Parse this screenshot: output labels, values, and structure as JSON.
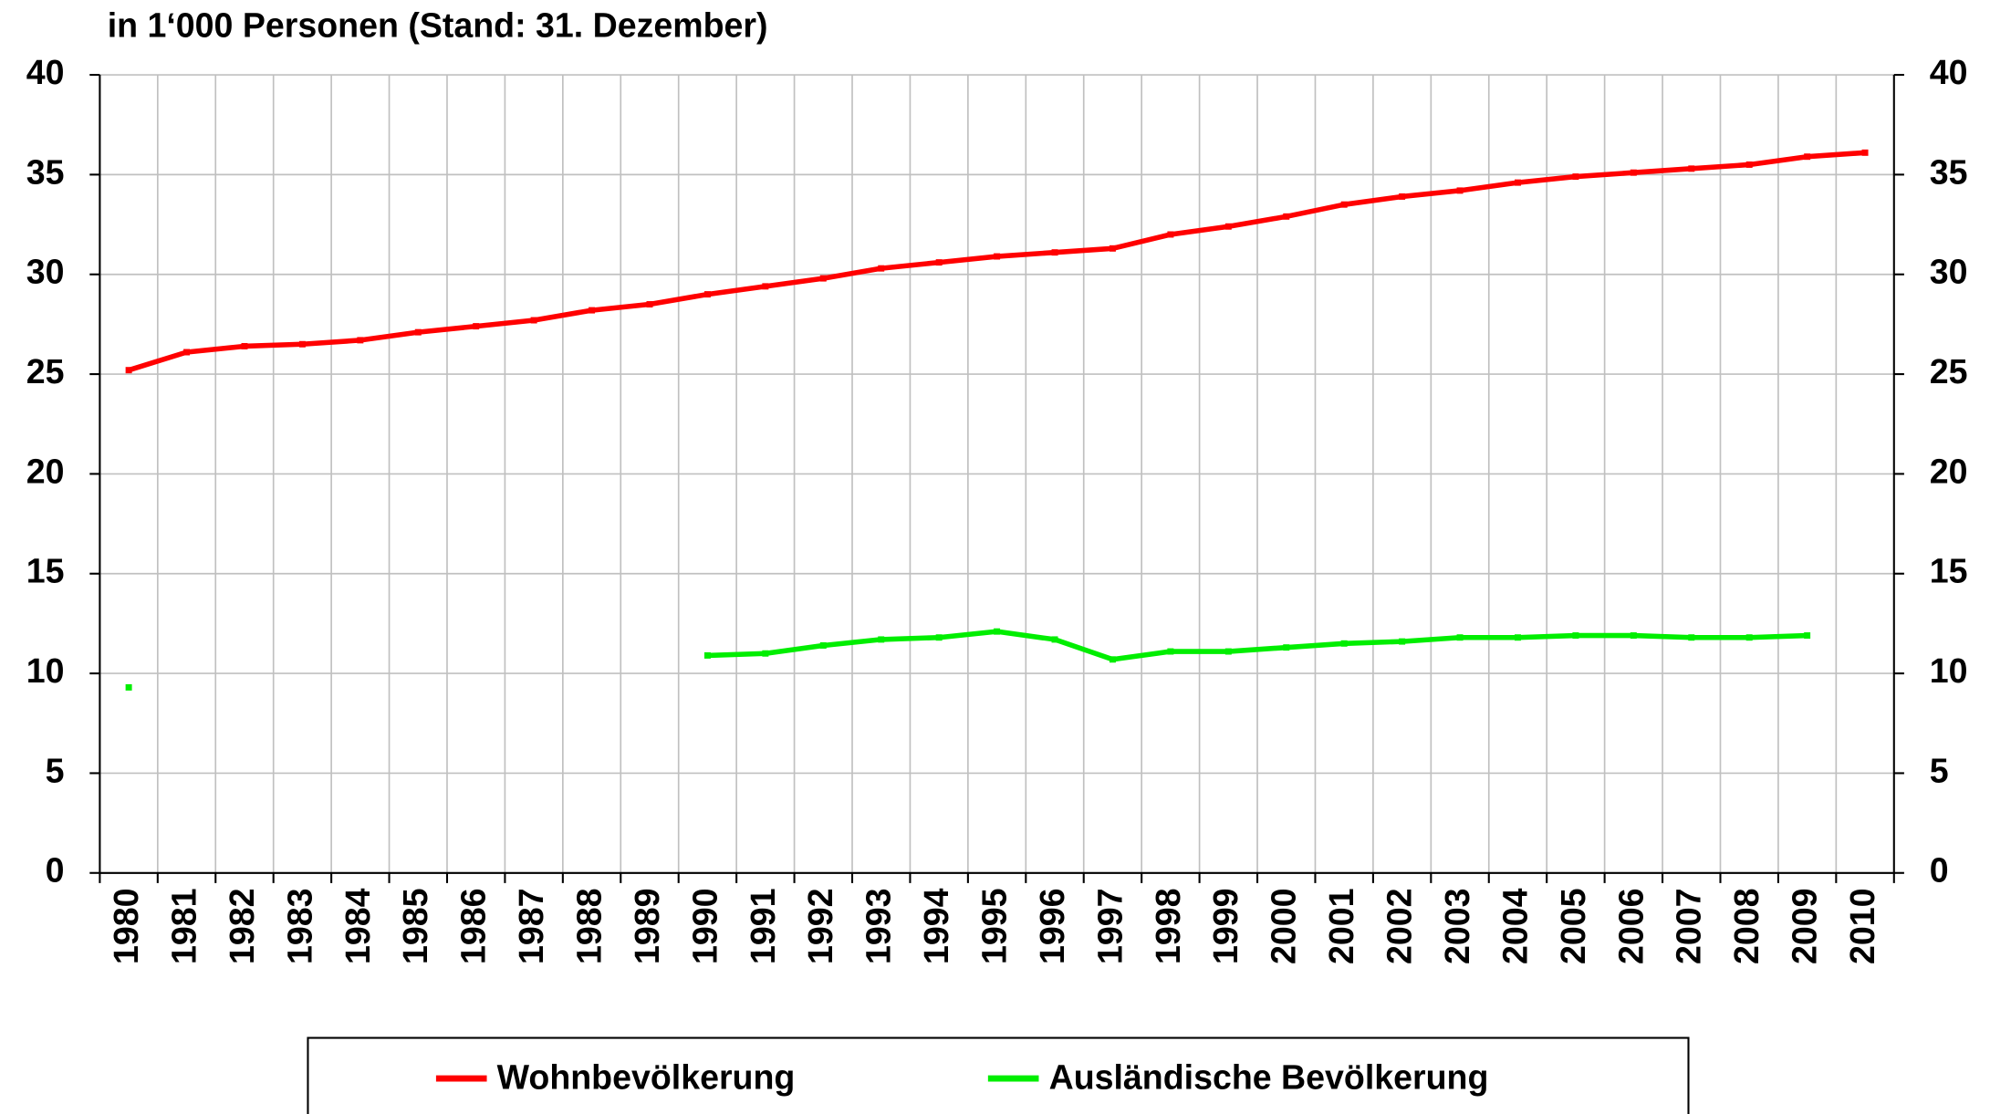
{
  "chart_data": {
    "type": "line",
    "title": "in 1‘000 Personen (Stand: 31. Dezember)",
    "categories": [
      "1980",
      "1981",
      "1982",
      "1983",
      "1984",
      "1985",
      "1986",
      "1987",
      "1988",
      "1989",
      "1990",
      "1991",
      "1992",
      "1993",
      "1994",
      "1995",
      "1996",
      "1997",
      "1998",
      "1999",
      "2000",
      "2001",
      "2002",
      "2003",
      "2004",
      "2005",
      "2006",
      "2007",
      "2008",
      "2009",
      "2010"
    ],
    "series": [
      {
        "name": "Wohnbevölkerung",
        "color": "#ff0000",
        "values": [
          25.2,
          26.1,
          26.4,
          26.5,
          26.7,
          27.1,
          27.4,
          27.7,
          28.2,
          28.5,
          29.0,
          29.4,
          29.8,
          30.3,
          30.6,
          30.9,
          31.1,
          31.3,
          32.0,
          32.4,
          32.9,
          33.5,
          33.9,
          34.2,
          34.6,
          34.9,
          35.1,
          35.3,
          35.5,
          35.9,
          36.1
        ]
      },
      {
        "name": "Ausländische Bevölkerung",
        "color": "#00ee00",
        "values": [
          9.3,
          null,
          null,
          null,
          null,
          null,
          null,
          null,
          null,
          null,
          10.9,
          11.0,
          11.4,
          11.7,
          11.8,
          12.1,
          11.7,
          10.7,
          11.1,
          11.1,
          11.3,
          11.5,
          11.6,
          11.8,
          11.8,
          11.9,
          11.9,
          11.8,
          11.8,
          11.9,
          null
        ]
      }
    ],
    "ylim": [
      0,
      40
    ],
    "yticks": [
      0,
      5,
      10,
      15,
      20,
      25,
      30,
      35,
      40
    ],
    "y2lim": [
      0,
      40
    ],
    "y2ticks": [
      0,
      5,
      10,
      15,
      20,
      25,
      30,
      35,
      40
    ],
    "grid": true,
    "legend": "bottom"
  }
}
